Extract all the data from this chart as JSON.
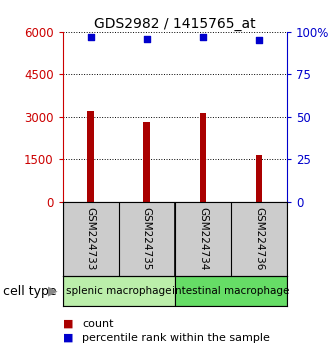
{
  "title": "GDS2982 / 1415765_at",
  "samples": [
    "GSM224733",
    "GSM224735",
    "GSM224734",
    "GSM224736"
  ],
  "bar_values": [
    3200,
    2800,
    3150,
    1650
  ],
  "percentile_values": [
    97,
    96,
    97,
    95
  ],
  "bar_color": "#aa0000",
  "dot_color": "#0000cc",
  "ylim_left": [
    0,
    6000
  ],
  "ylim_right": [
    0,
    100
  ],
  "yticks_left": [
    0,
    1500,
    3000,
    4500,
    6000
  ],
  "yticks_right": [
    0,
    25,
    50,
    75,
    100
  ],
  "ytick_labels_right": [
    "0",
    "25",
    "50",
    "75",
    "100%"
  ],
  "groups": [
    {
      "label": "splenic macrophage",
      "samples": [
        0,
        1
      ],
      "color": "#bbeeaa"
    },
    {
      "label": "intestinal macrophage",
      "samples": [
        2,
        3
      ],
      "color": "#66dd66"
    }
  ],
  "group_label": "cell type",
  "legend_count_label": "count",
  "legend_pct_label": "percentile rank within the sample",
  "bar_width": 0.12,
  "sample_bg_color": "#cccccc",
  "background_color": "#ffffff",
  "left_axis_color": "#cc0000",
  "right_axis_color": "#0000cc",
  "title_fontsize": 10,
  "tick_fontsize": 8.5,
  "sample_fontsize": 7.5,
  "group_fontsize": 7.5,
  "legend_fontsize": 8
}
